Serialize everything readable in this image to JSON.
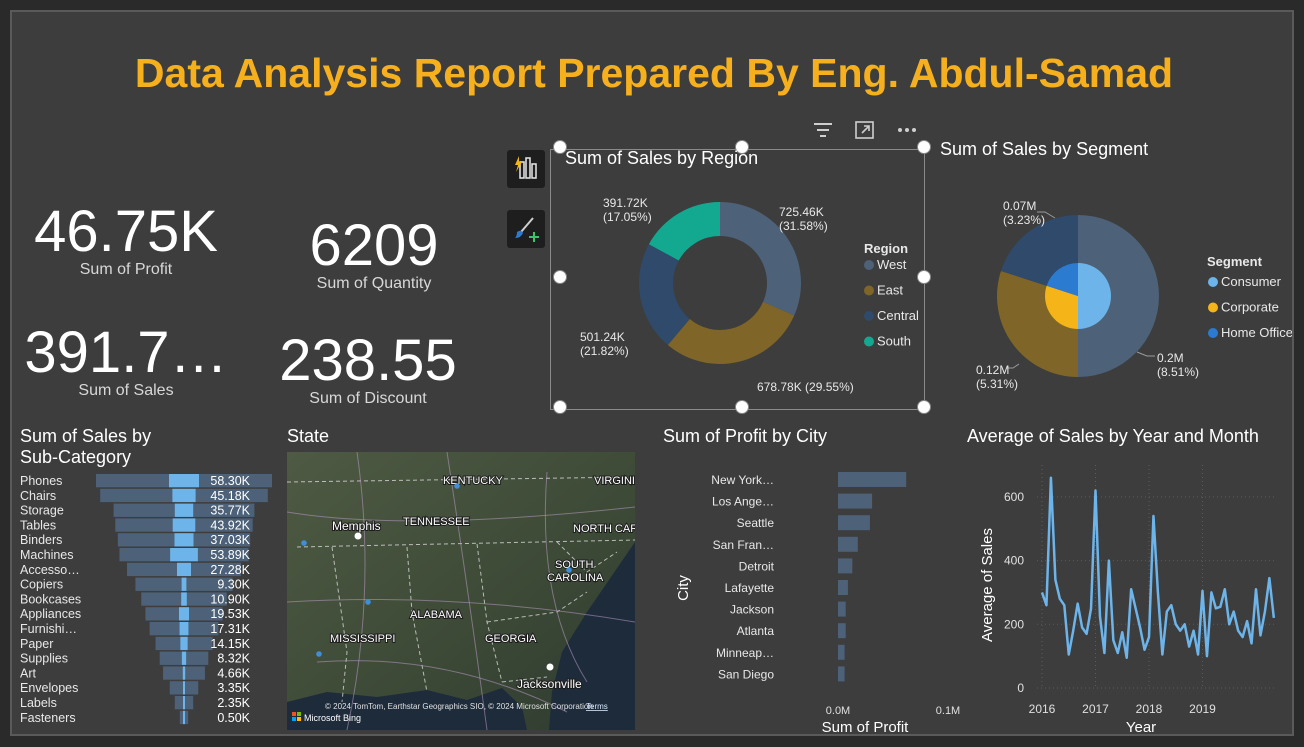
{
  "title": "Data Analysis Report Prepared By Eng. Abdul-Samad",
  "kpis": [
    {
      "value": "46.75K",
      "label": "Sum of Profit"
    },
    {
      "value": "6209",
      "label": "Sum of Quantity"
    },
    {
      "value": "391.7…",
      "label": "Sum of Sales"
    },
    {
      "value": "238.55",
      "label": "Sum of Discount"
    }
  ],
  "toolbar": {
    "filter_icon": "filter-icon",
    "focus_icon": "focus-mode-icon",
    "more_icon": "more-options-icon"
  },
  "side_buttons": {
    "insights_icon": "smart-narrative-icon",
    "format_icon": "format-paint-icon"
  },
  "region_chart": {
    "title": "Sum of Sales by Region",
    "legend_title": "Region",
    "colors": {
      "West": "#4d6178",
      "East": "#7f6628",
      "Central": "#2f4a6a",
      "South": "#13a991"
    },
    "chart_data": {
      "type": "pie",
      "variant": "donut",
      "categories": [
        "West",
        "East",
        "Central",
        "South"
      ],
      "values": [
        725.46,
        678.78,
        501.24,
        391.72
      ],
      "unit": "K",
      "data_labels": [
        "725.46K (31.58%)",
        "678.78K (29.55%)",
        "501.24K (21.82%)",
        "391.72K (17.05%)"
      ],
      "label_parts": [
        [
          "725.46K",
          "(31.58%)"
        ],
        [
          "678.78K (29.55%)"
        ],
        [
          "501.24K",
          "(21.82%)"
        ],
        [
          "391.72K",
          "(17.05%)"
        ]
      ],
      "legend": "right"
    }
  },
  "segment_chart": {
    "title": "Sum of Sales by Segment",
    "legend_title": "Segment",
    "legend": [
      {
        "name": "Consumer",
        "color": "#6cb4e9"
      },
      {
        "name": "Corporate",
        "color": "#f5b417"
      },
      {
        "name": "Home Office",
        "color": "#2b7bd0"
      }
    ],
    "chart_data": {
      "type": "pie",
      "inner_categories": [
        "Consumer",
        "Corporate",
        "Home Office"
      ],
      "outer_values": [
        0.5,
        0.3,
        0.2
      ],
      "data_labels": [
        [
          "0.2M",
          "(8.51%)"
        ],
        [
          "0.12M",
          "(5.31%)"
        ],
        [
          "0.07M",
          "(3.23%)"
        ]
      ],
      "legend": "right"
    }
  },
  "subcat_chart": {
    "title_line1": "Sum of Sales by",
    "title_line2": "Sub-Category",
    "chart_data": {
      "type": "bar",
      "categories": [
        "Phones",
        "Chairs",
        "Storage",
        "Tables",
        "Binders",
        "Machines",
        "Accesso…",
        "Copiers",
        "Bookcases",
        "Appliances",
        "Furnishi…",
        "Paper",
        "Supplies",
        "Art",
        "Envelopes",
        "Labels",
        "Fasteners"
      ],
      "sales": [
        105,
        100,
        84,
        82,
        79,
        77,
        68,
        58,
        51,
        46,
        41,
        34,
        29,
        25,
        17,
        11,
        5
      ],
      "profit": [
        58.3,
        45.18,
        35.77,
        43.92,
        37.03,
        53.89,
        27.28,
        9.3,
        10.9,
        19.53,
        17.31,
        14.15,
        8.32,
        4.66,
        3.35,
        2.35,
        0.5
      ],
      "profit_labels": [
        "58.30K",
        "45.18K",
        "35.77K",
        "43.92K",
        "37.03K",
        "53.89K",
        "27.28K",
        "9.30K",
        "10.90K",
        "19.53K",
        "17.31K",
        "14.15K",
        "8.32K",
        "4.66K",
        "3.35K",
        "2.35K",
        "0.50K"
      ]
    }
  },
  "map": {
    "title": "State",
    "places": [
      {
        "name": "KENTUCKY",
        "kind": "state"
      },
      {
        "name": "VIRGINI",
        "kind": "state"
      },
      {
        "name": "TENNESSEE",
        "kind": "state"
      },
      {
        "name": "NORTH CAR",
        "kind": "state"
      },
      {
        "name": "Memphis",
        "kind": "city"
      },
      {
        "name": "SOUTH",
        "kind": "state"
      },
      {
        "name": "CAROLINA",
        "kind": "state"
      },
      {
        "name": "ALABAMA",
        "kind": "state"
      },
      {
        "name": "MISSISSIPPI",
        "kind": "state"
      },
      {
        "name": "GEORGIA",
        "kind": "state"
      },
      {
        "name": "Jacksonville",
        "kind": "city"
      }
    ],
    "attribution": "© 2024 TomTom, Earthstar Geographics SIO, © 2024 Microsoft Corporation",
    "terms": "Terms",
    "bing": "Microsoft Bing"
  },
  "city_chart": {
    "title": "Sum of Profit by City",
    "xlabel": "Sum of Profit",
    "ylabel": "City",
    "xticks": [
      "0.0M",
      "0.1M"
    ],
    "scroll_marker": "0",
    "chart_data": {
      "type": "bar",
      "orientation": "horizontal",
      "categories": [
        "New York…",
        "Los Ange…",
        "Seattle",
        "San Fran…",
        "Detroit",
        "Lafayette",
        "Jackson",
        "Atlanta",
        "Minneap…",
        "San Diego"
      ],
      "values": [
        0.062,
        0.031,
        0.029,
        0.018,
        0.013,
        0.009,
        0.007,
        0.007,
        0.006,
        0.006
      ],
      "xlim": [
        0,
        0.1
      ]
    }
  },
  "line_chart": {
    "title": "Average of Sales by Year and Month",
    "xlabel": "Year",
    "ylabel": "Average of Sales",
    "yticks": [
      "0",
      "200",
      "400",
      "600"
    ],
    "xticks": [
      "2016",
      "2017",
      "2018",
      "2019"
    ],
    "chart_data": {
      "type": "line",
      "x_start": "2016-01",
      "values": [
        300,
        260,
        660,
        340,
        280,
        260,
        105,
        180,
        265,
        190,
        170,
        250,
        620,
        225,
        110,
        400,
        150,
        110,
        175,
        95,
        310,
        250,
        190,
        120,
        160,
        540,
        300,
        105,
        240,
        260,
        200,
        180,
        200,
        130,
        180,
        105,
        305,
        100,
        300,
        250,
        255,
        310,
        200,
        240,
        180,
        160,
        210,
        140,
        310,
        165,
        240,
        345,
        220
      ],
      "ylim": [
        0,
        700
      ]
    }
  }
}
